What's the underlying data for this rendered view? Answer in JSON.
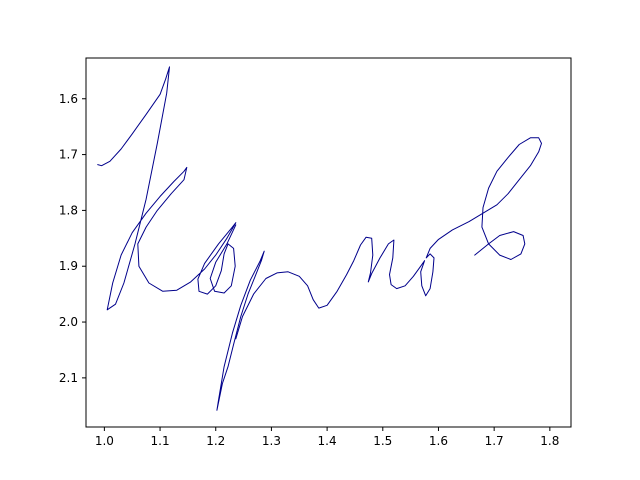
{
  "chart_data": {
    "type": "line",
    "title": "",
    "xlabel": "",
    "ylabel": "",
    "xlim": [
      0.967,
      1.838
    ],
    "ylim": [
      1.527,
      2.188
    ],
    "y_inverted": true,
    "grid": false,
    "x_ticks": [
      "1.0",
      "1.1",
      "1.2",
      "1.3",
      "1.4",
      "1.5",
      "1.6",
      "1.7",
      "1.8"
    ],
    "x_tick_values": [
      1.0,
      1.1,
      1.2,
      1.3,
      1.4,
      1.5,
      1.6,
      1.7,
      1.8
    ],
    "y_ticks": [
      "1.6",
      "1.7",
      "1.8",
      "1.9",
      "2.0",
      "2.1"
    ],
    "y_tick_values": [
      1.6,
      1.7,
      1.8,
      1.9,
      2.0,
      2.1
    ],
    "series": [
      {
        "color": "#00008b",
        "strokes": [
          [
            [
              0.988,
              1.718
            ],
            [
              0.995,
              1.72
            ],
            [
              1.01,
              1.712
            ],
            [
              1.03,
              1.69
            ],
            [
              1.05,
              1.663
            ],
            [
              1.075,
              1.628
            ],
            [
              1.1,
              1.592
            ],
            [
              1.11,
              1.565
            ],
            [
              1.117,
              1.543
            ],
            [
              1.112,
              1.59
            ],
            [
              1.095,
              1.68
            ],
            [
              1.075,
              1.78
            ],
            [
              1.055,
              1.86
            ],
            [
              1.035,
              1.93
            ],
            [
              1.02,
              1.968
            ],
            [
              1.005,
              1.978
            ],
            [
              1.015,
              1.93
            ],
            [
              1.03,
              1.88
            ],
            [
              1.05,
              1.84
            ],
            [
              1.075,
              1.805
            ],
            [
              1.1,
              1.775
            ],
            [
              1.125,
              1.748
            ],
            [
              1.143,
              1.73
            ],
            [
              1.148,
              1.723
            ],
            [
              1.143,
              1.745
            ],
            [
              1.12,
              1.77
            ],
            [
              1.095,
              1.8
            ],
            [
              1.075,
              1.83
            ],
            [
              1.06,
              1.86
            ],
            [
              1.062,
              1.9
            ],
            [
              1.08,
              1.93
            ],
            [
              1.105,
              1.945
            ],
            [
              1.13,
              1.943
            ],
            [
              1.155,
              1.928
            ],
            [
              1.18,
              1.905
            ],
            [
              1.2,
              1.88
            ],
            [
              1.22,
              1.85
            ],
            [
              1.236,
              1.822
            ],
            [
              1.23,
              1.83
            ],
            [
              1.205,
              1.86
            ],
            [
              1.18,
              1.895
            ],
            [
              1.168,
              1.923
            ],
            [
              1.17,
              1.945
            ],
            [
              1.185,
              1.95
            ],
            [
              1.2,
              1.935
            ],
            [
              1.21,
              1.908
            ],
            [
              1.215,
              1.878
            ],
            [
              1.222,
              1.86
            ],
            [
              1.232,
              1.868
            ],
            [
              1.235,
              1.9
            ],
            [
              1.228,
              1.935
            ],
            [
              1.215,
              1.948
            ],
            [
              1.198,
              1.945
            ],
            [
              1.19,
              1.922
            ],
            [
              1.2,
              1.893
            ],
            [
              1.22,
              1.86
            ],
            [
              1.236,
              1.826
            ]
          ],
          [
            [
              1.202,
              2.158
            ],
            [
              1.205,
              2.14
            ],
            [
              1.215,
              2.08
            ],
            [
              1.23,
              2.02
            ],
            [
              1.245,
              1.97
            ],
            [
              1.262,
              1.925
            ],
            [
              1.28,
              1.89
            ],
            [
              1.287,
              1.873
            ],
            [
              1.282,
              1.89
            ],
            [
              1.27,
              1.92
            ],
            [
              1.258,
              1.95
            ],
            [
              1.245,
              1.99
            ],
            [
              1.232,
              2.04
            ],
            [
              1.222,
              2.08
            ],
            [
              1.212,
              2.11
            ],
            [
              1.202,
              2.158
            ]
          ],
          [
            [
              1.236,
              2.03
            ],
            [
              1.248,
              1.99
            ],
            [
              1.268,
              1.95
            ],
            [
              1.29,
              1.922
            ],
            [
              1.31,
              1.912
            ],
            [
              1.33,
              1.91
            ],
            [
              1.35,
              1.918
            ],
            [
              1.365,
              1.935
            ],
            [
              1.375,
              1.96
            ],
            [
              1.385,
              1.975
            ],
            [
              1.4,
              1.97
            ],
            [
              1.418,
              1.945
            ],
            [
              1.435,
              1.915
            ],
            [
              1.448,
              1.89
            ],
            [
              1.46,
              1.862
            ],
            [
              1.47,
              1.848
            ],
            [
              1.48,
              1.85
            ],
            [
              1.482,
              1.88
            ],
            [
              1.478,
              1.912
            ],
            [
              1.474,
              1.928
            ],
            [
              1.48,
              1.913
            ],
            [
              1.495,
              1.885
            ],
            [
              1.51,
              1.86
            ],
            [
              1.52,
              1.853
            ],
            [
              1.518,
              1.885
            ],
            [
              1.512,
              1.915
            ],
            [
              1.515,
              1.933
            ],
            [
              1.525,
              1.94
            ],
            [
              1.54,
              1.935
            ],
            [
              1.555,
              1.918
            ],
            [
              1.568,
              1.9
            ],
            [
              1.575,
              1.89
            ],
            [
              1.568,
              1.91
            ],
            [
              1.57,
              1.935
            ],
            [
              1.577,
              1.953
            ],
            [
              1.585,
              1.94
            ],
            [
              1.59,
              1.91
            ],
            [
              1.592,
              1.885
            ],
            [
              1.585,
              1.878
            ],
            [
              1.578,
              1.885
            ],
            [
              1.585,
              1.868
            ],
            [
              1.6,
              1.852
            ],
            [
              1.625,
              1.835
            ],
            [
              1.655,
              1.82
            ],
            [
              1.68,
              1.805
            ],
            [
              1.705,
              1.79
            ],
            [
              1.725,
              1.77
            ],
            [
              1.745,
              1.745
            ],
            [
              1.765,
              1.72
            ],
            [
              1.78,
              1.695
            ],
            [
              1.785,
              1.68
            ],
            [
              1.78,
              1.67
            ],
            [
              1.765,
              1.67
            ],
            [
              1.745,
              1.682
            ],
            [
              1.725,
              1.705
            ],
            [
              1.705,
              1.73
            ],
            [
              1.69,
              1.76
            ],
            [
              1.68,
              1.795
            ],
            [
              1.678,
              1.83
            ],
            [
              1.69,
              1.86
            ],
            [
              1.71,
              1.88
            ],
            [
              1.73,
              1.888
            ],
            [
              1.748,
              1.878
            ],
            [
              1.755,
              1.86
            ],
            [
              1.752,
              1.845
            ],
            [
              1.735,
              1.838
            ],
            [
              1.71,
              1.845
            ],
            [
              1.69,
              1.86
            ],
            [
              1.665,
              1.88
            ]
          ]
        ]
      }
    ]
  }
}
